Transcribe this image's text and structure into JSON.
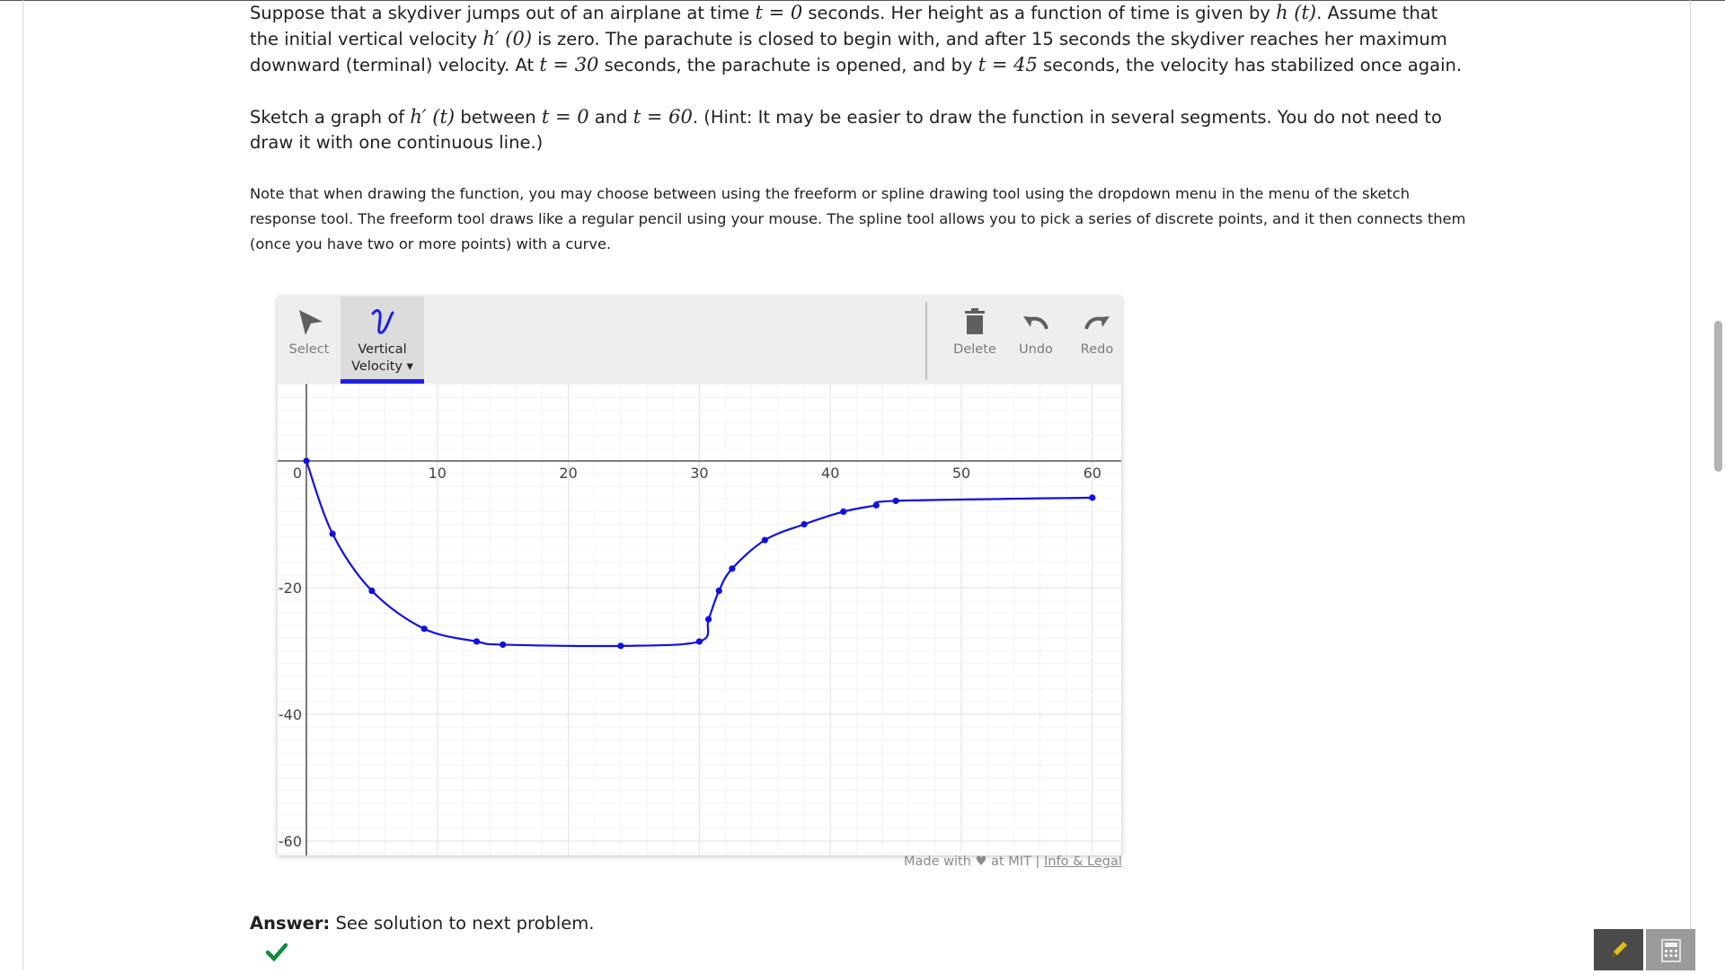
{
  "problem": {
    "p1": {
      "s1": "Suppose that a skydiver jumps out of an airplane at time ",
      "m1": "t = 0",
      "s2": " seconds. Her height as a function of time is given by ",
      "m2": "h (t)",
      "s3": ". Assume that the initial vertical velocity ",
      "m3": "h′ (0)",
      "s4": " is zero. The parachute is closed to begin with, and after 15 seconds the skydiver reaches her maximum downward (terminal) velocity. At ",
      "m4": "t = 30",
      "s5": " seconds, the parachute is opened, and by ",
      "m5": "t = 45",
      "s6": " seconds, the velocity has stabilized once again."
    },
    "p2": {
      "s1": "Sketch a graph of ",
      "m1": "h′ (t)",
      "s2": " between ",
      "m2": "t = 0",
      "s3": " and ",
      "m3": "t = 60",
      "s4": ". (Hint: It may be easier to draw the function in several segments. You do not need to draw it with one continuous line.)"
    },
    "note": "Note that when drawing the function, you may choose between using the freeform or spline drawing tool using the dropdown menu in the menu of the sketch response tool. The freeform tool draws like a regular pencil using your mouse. The spline tool allows you to pick a series of discrete points, and it then connects them (once you have two or more points) with a curve."
  },
  "toolbar": {
    "select": "Select",
    "vv_line1": "Vertical",
    "vv_line2": "Velocity ▾",
    "delete": "Delete",
    "undo": "Undo",
    "redo": "Redo"
  },
  "colors": {
    "curve": "#1010e0",
    "accent": "#1f1fe0",
    "grid": "#ebebeb",
    "check": "#138a3c"
  },
  "chart_data": {
    "type": "line",
    "xlim": [
      -2,
      62
    ],
    "ylim": [
      -62,
      6
    ],
    "x_ticks": [
      0,
      10,
      20,
      30,
      40,
      50,
      60
    ],
    "y_ticks": [
      -20,
      -40,
      -60
    ],
    "grid": true,
    "series": [
      {
        "points": [
          [
            0,
            0
          ],
          [
            2,
            -11.5
          ],
          [
            5,
            -20.5
          ],
          [
            9,
            -26.5
          ],
          [
            13,
            -28.5
          ],
          [
            15,
            -29
          ],
          [
            24,
            -29.2
          ],
          [
            30,
            -28.5
          ],
          [
            30.7,
            -25
          ],
          [
            31.5,
            -20.5
          ],
          [
            32.5,
            -17
          ],
          [
            35,
            -12.5
          ],
          [
            38,
            -10
          ],
          [
            41,
            -8
          ],
          [
            43.5,
            -7
          ],
          [
            45,
            -6.3
          ],
          [
            60,
            -5.8
          ]
        ]
      }
    ]
  },
  "credit": {
    "made_with": "Made with ♥ at MIT",
    "sep": "|",
    "link": "Info & Legal"
  },
  "answer": {
    "label": "Answer:",
    "text": "See solution to next problem."
  }
}
